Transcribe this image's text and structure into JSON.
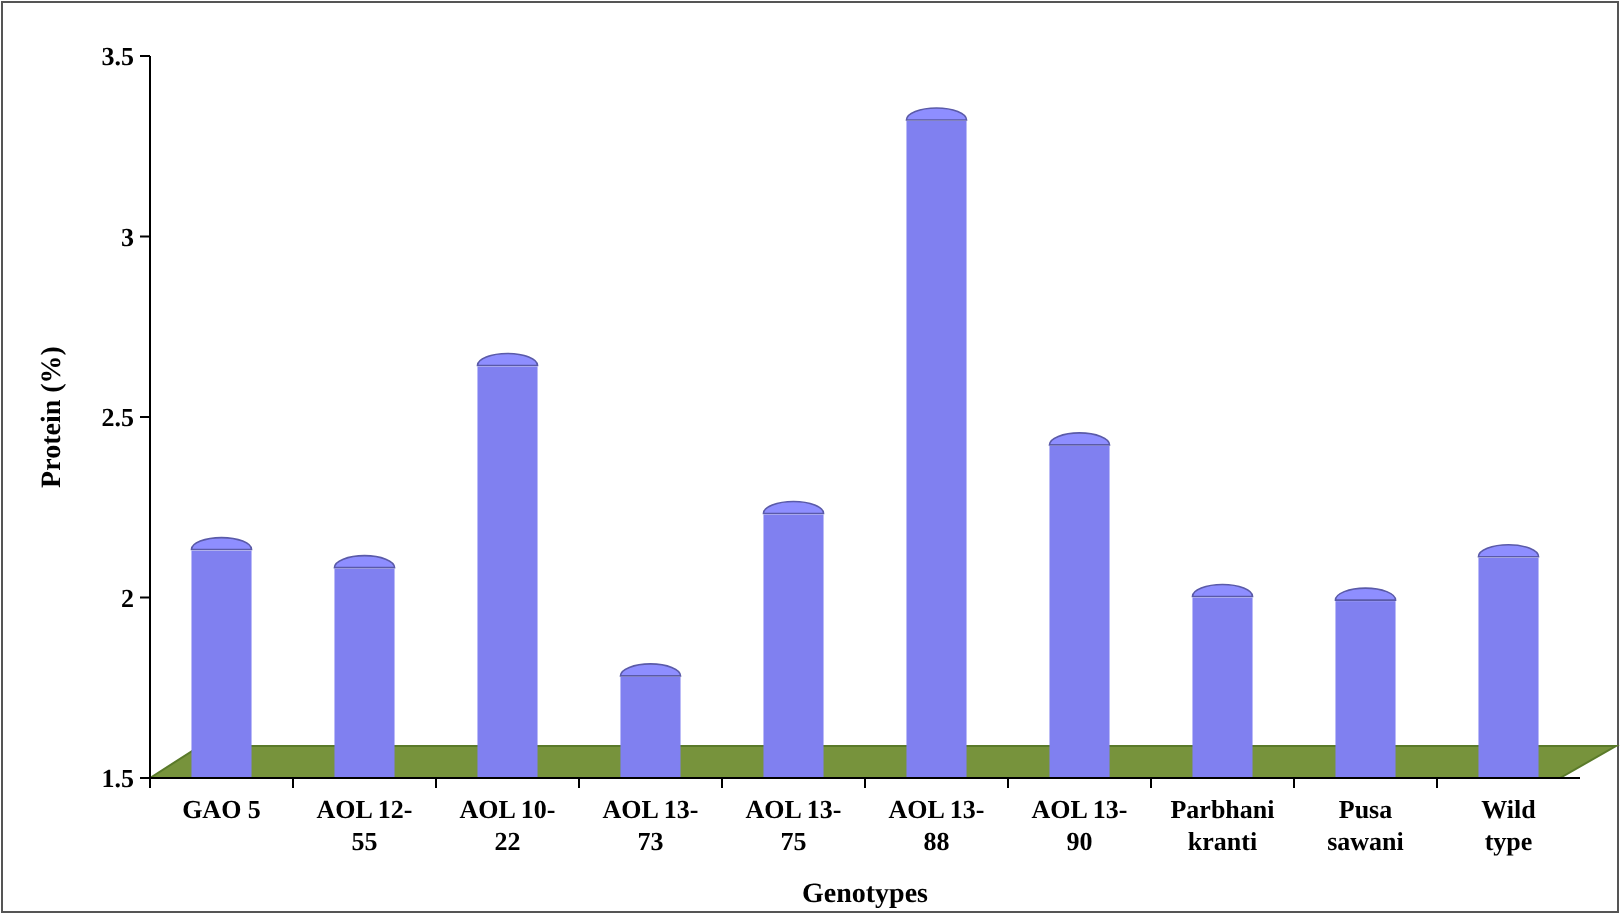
{
  "chart_data": {
    "type": "bar",
    "xlabel": "Genotypes",
    "ylabel": "Protein (%)",
    "categories": [
      "GAO 5",
      "AOL 12-55",
      "AOL 10-22",
      "AOL 13-73",
      "AOL 13-75",
      "AOL 13-88",
      "AOL 13-90",
      "Parbhani kranti",
      "Pusa sawani",
      "Wild type"
    ],
    "values": [
      2.13,
      2.08,
      2.64,
      1.78,
      2.23,
      3.32,
      2.42,
      2.0,
      1.99,
      2.11
    ],
    "color": "#8080f0",
    "ylim": [
      1.5,
      3.5
    ],
    "yticks": [
      1.5,
      2,
      2.5,
      3,
      3.5
    ],
    "grid": false
  }
}
